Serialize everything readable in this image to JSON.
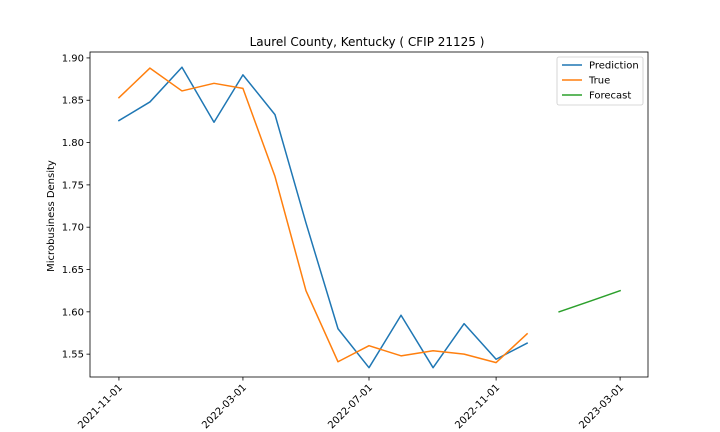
{
  "chart_data": {
    "type": "line",
    "title": "Laurel County, Kentucky ( CFIP 21125 )",
    "xlabel": "",
    "ylabel": "Microbusiness Density",
    "xlim": [
      "2021-10-04",
      "2023-03-28"
    ],
    "ylim": [
      1.523,
      1.907
    ],
    "x_ticks": [
      "2021-11-01",
      "2022-03-01",
      "2022-07-01",
      "2022-11-01",
      "2023-03-01"
    ],
    "y_ticks": [
      "1.55",
      "1.60",
      "1.65",
      "1.70",
      "1.75",
      "1.80",
      "1.85",
      "1.90"
    ],
    "legend_position": "top-right",
    "grid": false,
    "series": [
      {
        "name": "Prediction",
        "color": "#1f77b4",
        "x": [
          "2021-11-01",
          "2021-12-01",
          "2022-01-01",
          "2022-02-01",
          "2022-03-01",
          "2022-04-01",
          "2022-05-01",
          "2022-06-01",
          "2022-07-01",
          "2022-08-01",
          "2022-09-01",
          "2022-10-01",
          "2022-11-01",
          "2022-12-01"
        ],
        "values": [
          1.826,
          1.848,
          1.889,
          1.824,
          1.88,
          1.833,
          1.705,
          1.58,
          1.534,
          1.596,
          1.534,
          1.586,
          1.544,
          1.563
        ]
      },
      {
        "name": "True",
        "color": "#ff7f0e",
        "x": [
          "2021-11-01",
          "2021-12-01",
          "2022-01-01",
          "2022-02-01",
          "2022-03-01",
          "2022-04-01",
          "2022-05-01",
          "2022-06-01",
          "2022-07-01",
          "2022-08-01",
          "2022-09-01",
          "2022-10-01",
          "2022-11-01",
          "2022-12-01"
        ],
        "values": [
          1.853,
          1.888,
          1.861,
          1.87,
          1.864,
          1.76,
          1.625,
          1.541,
          1.56,
          1.548,
          1.554,
          1.55,
          1.54,
          1.574
        ]
      },
      {
        "name": "Forecast",
        "color": "#2ca02c",
        "x": [
          "2023-01-01",
          "2023-02-01",
          "2023-03-01"
        ],
        "values": [
          1.6,
          1.613,
          1.625
        ]
      }
    ]
  }
}
